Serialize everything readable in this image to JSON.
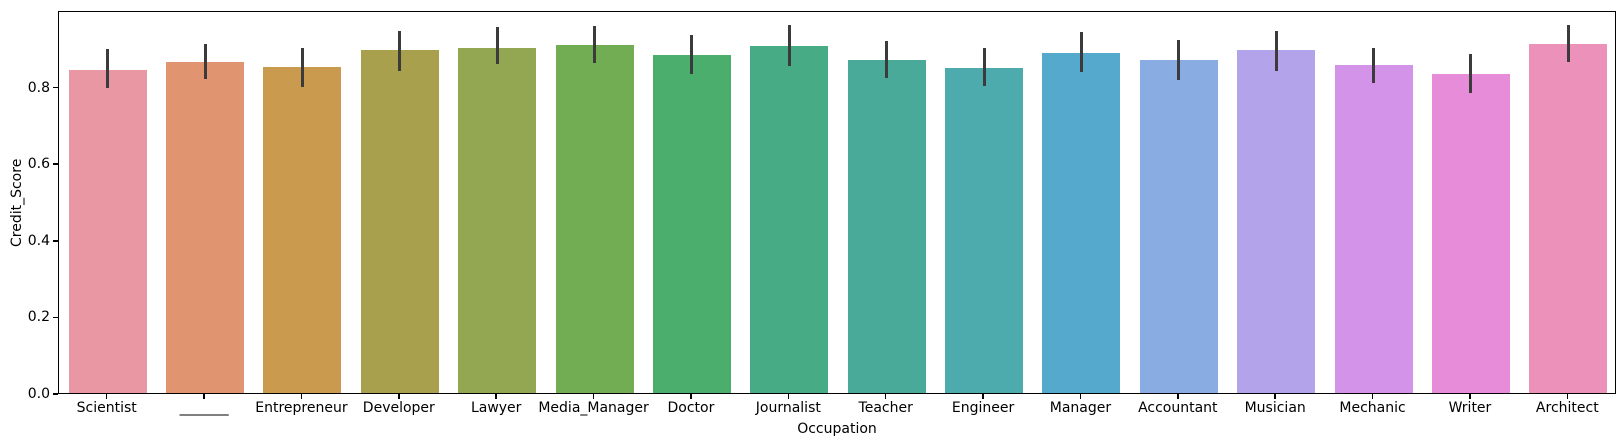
{
  "figure": {
    "background": "#ffffff",
    "spine_color": "#000000",
    "text_color": "#000000"
  },
  "chart_data": {
    "type": "bar",
    "title": "",
    "xlabel": "Occupation",
    "ylabel": "Credit_Score",
    "categories": [
      "Scientist",
      "_______",
      "Entrepreneur",
      "Developer",
      "Lawyer",
      "Media_Manager",
      "Doctor",
      "Journalist",
      "Teacher",
      "Engineer",
      "Manager",
      "Accountant",
      "Musician",
      "Mechanic",
      "Writer",
      "Architect"
    ],
    "series": [
      {
        "name": "Credit_Score",
        "values": [
          0.844,
          0.863,
          0.852,
          0.896,
          0.902,
          0.909,
          0.883,
          0.906,
          0.87,
          0.849,
          0.889,
          0.87,
          0.895,
          0.856,
          0.833,
          0.91
        ],
        "error_low": [
          0.796,
          0.82,
          0.798,
          0.841,
          0.859,
          0.861,
          0.833,
          0.853,
          0.822,
          0.801,
          0.839,
          0.817,
          0.84,
          0.809,
          0.783,
          0.863
        ],
        "error_high": [
          0.898,
          0.911,
          0.902,
          0.946,
          0.955,
          0.959,
          0.935,
          0.961,
          0.92,
          0.902,
          0.942,
          0.922,
          0.944,
          0.901,
          0.885,
          0.962
        ]
      }
    ],
    "bar_colors": [
      "#e897a3",
      "#e09470",
      "#ca9a4e",
      "#a9a04e",
      "#93a651",
      "#72ad53",
      "#4bae6d",
      "#47ac85",
      "#4aaa9a",
      "#4daaad",
      "#54a9cd",
      "#89ade2",
      "#b2a3ea",
      "#d393e8",
      "#e78cd8",
      "#eb91ba"
    ],
    "error_bar_color": "#3b3b3b",
    "ytick_labels": [
      "0.0",
      "0.2",
      "0.4",
      "0.6",
      "0.8"
    ],
    "ytick_values": [
      0.0,
      0.2,
      0.4,
      0.6,
      0.8
    ],
    "ylim": [
      0.0,
      1.0
    ],
    "bar_rel_width": 0.8,
    "grid": false,
    "legend_position": "none"
  }
}
